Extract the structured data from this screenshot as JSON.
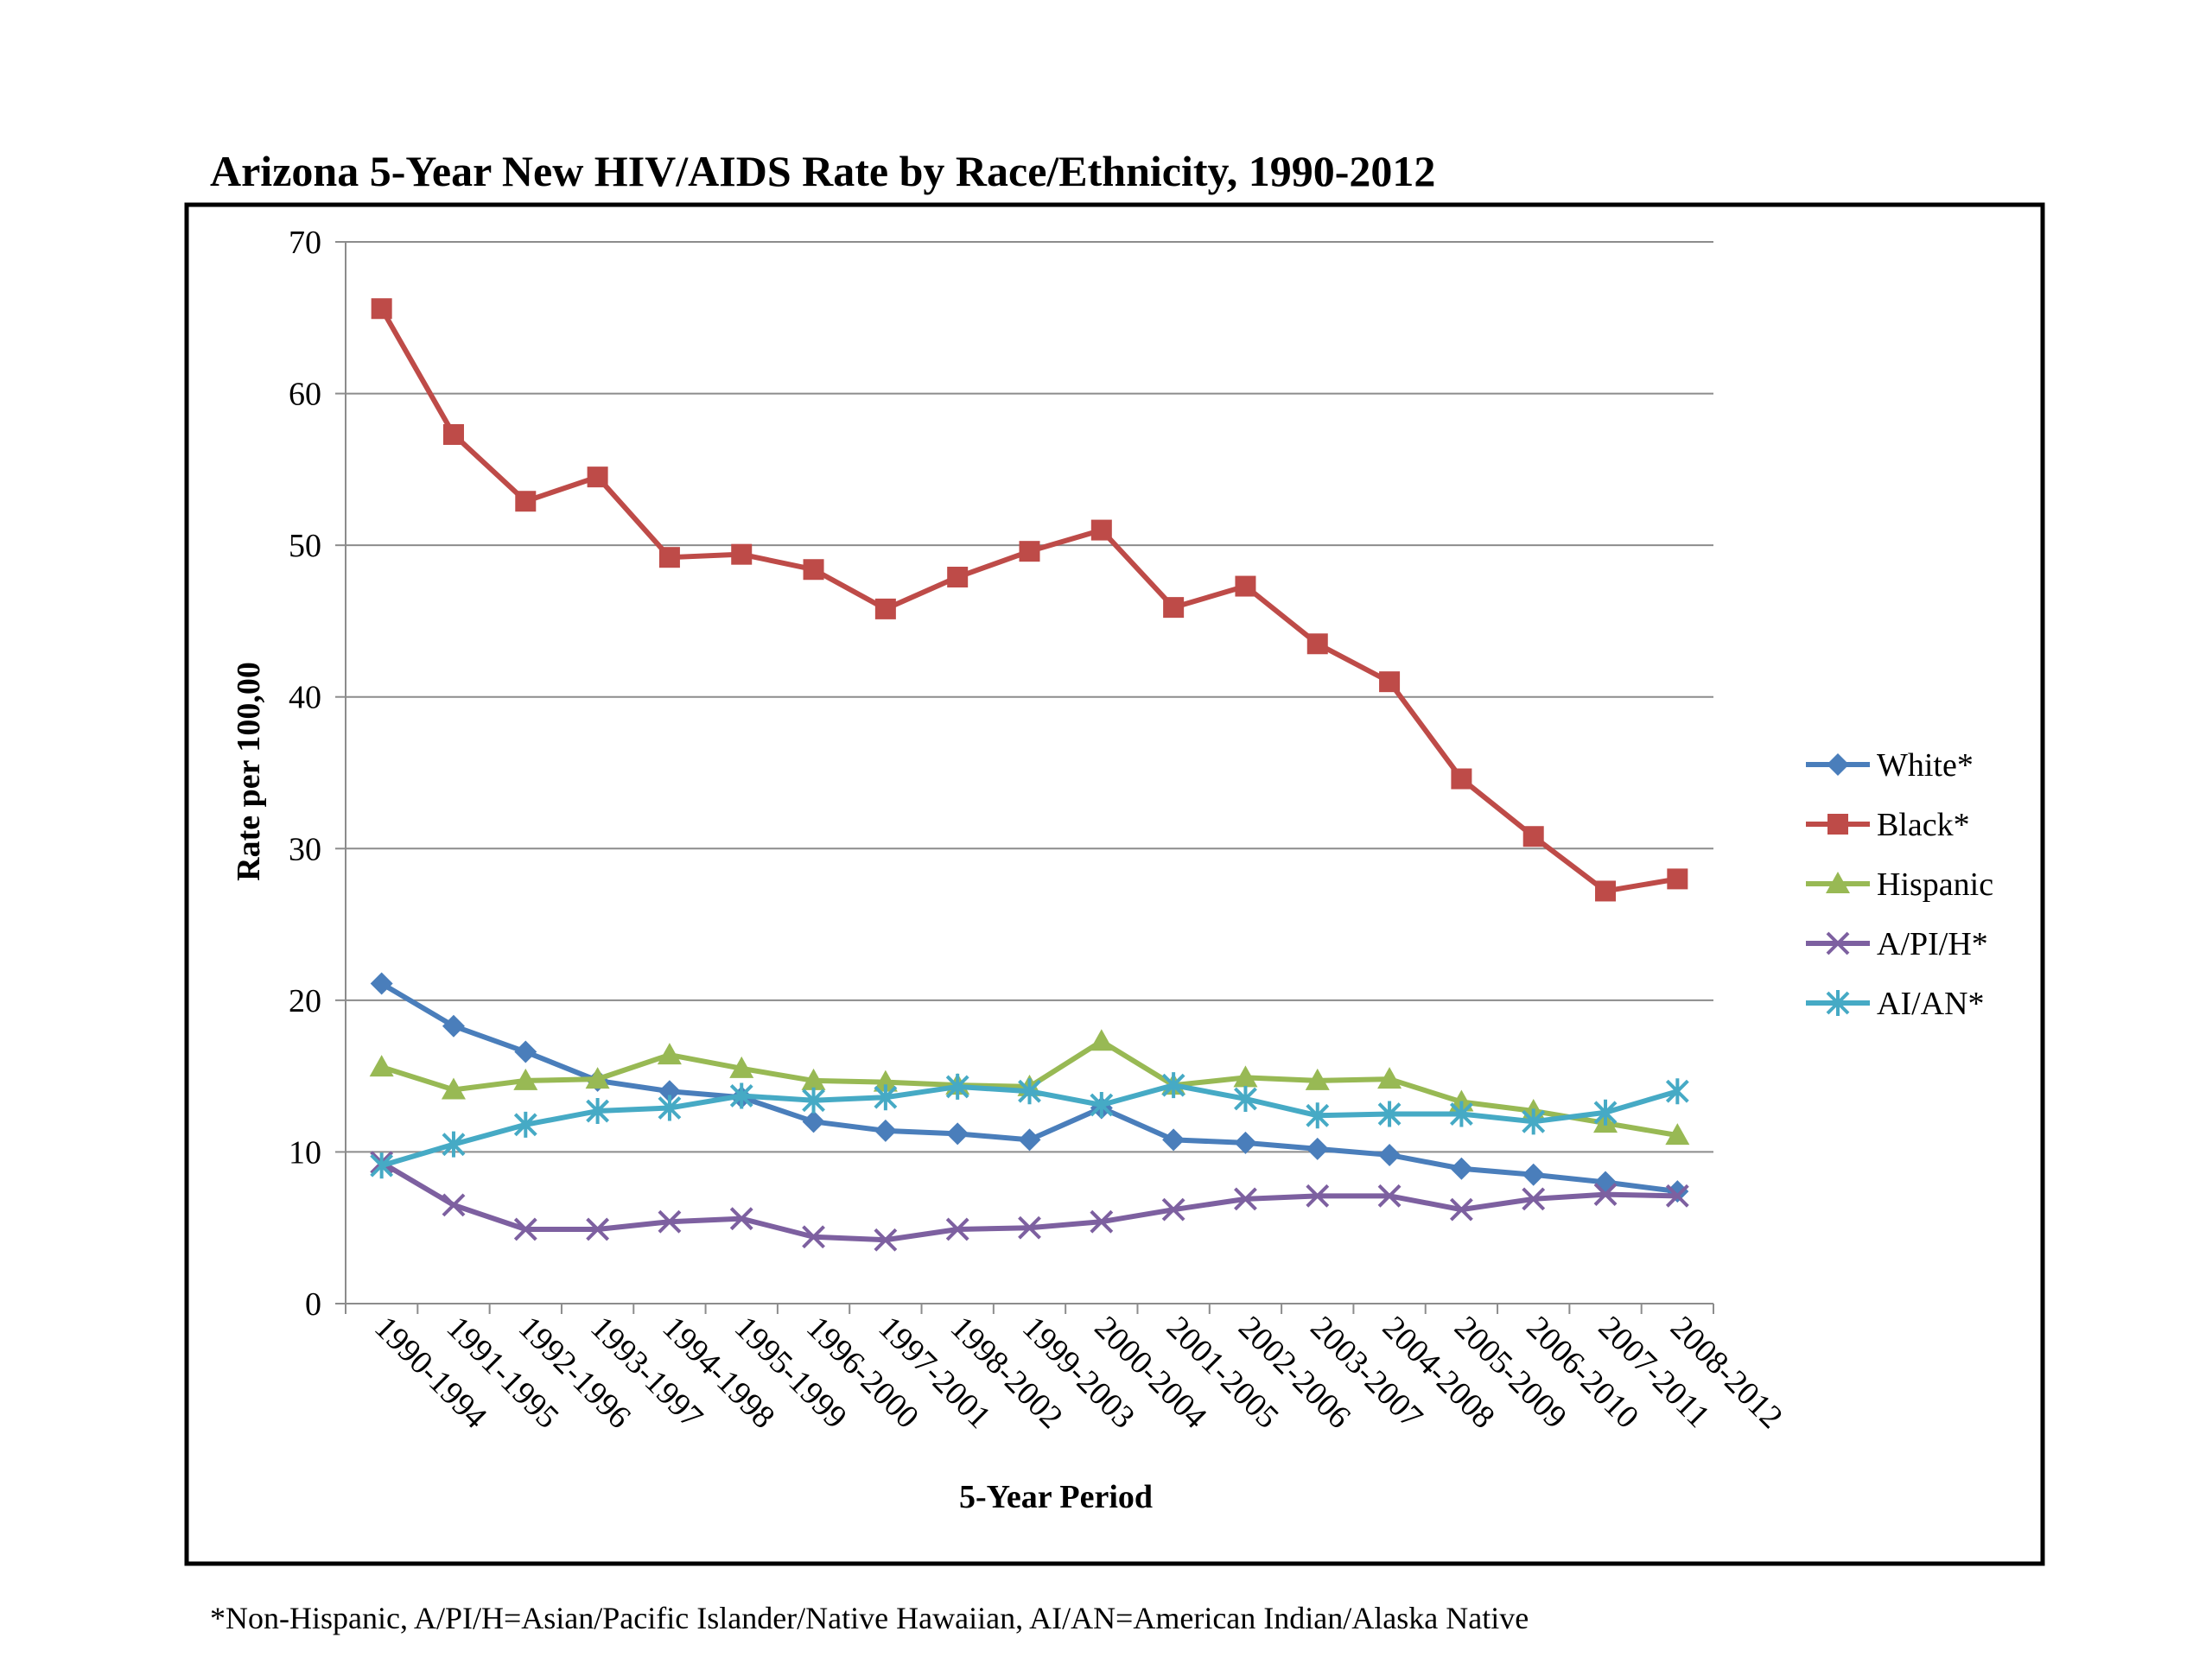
{
  "chart_data": {
    "type": "line",
    "title": "Arizona 5-Year New HIV/AIDS Rate by Race/Ethnicity, 1990-2012",
    "xlabel": "5-Year Period",
    "ylabel": "Rate per 100,00",
    "ylim": [
      0,
      70
    ],
    "yticks": [
      0,
      10,
      20,
      30,
      40,
      50,
      60,
      70
    ],
    "grid": true,
    "legend_position": "right",
    "footnote": "*Non-Hispanic, A/PI/H=Asian/Pacific Islander/Native Hawaiian, AI/AN=American Indian/Alaska Native",
    "categories": [
      "1990-1994",
      "1991-1995",
      "1992-1996",
      "1993-1997",
      "1994-1998",
      "1995-1999",
      "1996-2000",
      "1997-2001",
      "1998-2002",
      "1999-2003",
      "2000-2004",
      "2001-2005",
      "2002-2006",
      "2003-2007",
      "2004-2008",
      "2005-2009",
      "2006-2010",
      "2007-2011",
      "2008-2012"
    ],
    "series": [
      {
        "name": "White*",
        "color": "#4a7ebb",
        "marker": "diamond",
        "values": [
          21.1,
          18.3,
          16.6,
          14.7,
          14.0,
          13.6,
          12.0,
          11.4,
          11.2,
          10.8,
          12.9,
          10.8,
          10.6,
          10.2,
          9.8,
          8.9,
          8.5,
          8.0,
          7.4
        ]
      },
      {
        "name": "Black*",
        "color": "#be4b48",
        "marker": "square",
        "values": [
          65.6,
          57.3,
          52.9,
          54.5,
          49.2,
          49.4,
          48.4,
          45.8,
          47.9,
          49.6,
          51.0,
          45.9,
          47.3,
          43.5,
          41.0,
          34.6,
          30.8,
          27.2,
          28.0
        ]
      },
      {
        "name": "Hispanic",
        "color": "#98b954",
        "marker": "triangle",
        "values": [
          15.6,
          14.1,
          14.7,
          14.8,
          16.4,
          15.5,
          14.7,
          14.6,
          14.4,
          14.3,
          17.3,
          14.4,
          14.9,
          14.7,
          14.8,
          13.3,
          12.7,
          11.9,
          11.1
        ]
      },
      {
        "name": "A/PI/H*",
        "color": "#7d60a0",
        "marker": "x",
        "values": [
          9.3,
          6.5,
          4.9,
          4.9,
          5.4,
          5.6,
          4.4,
          4.2,
          4.9,
          5.0,
          5.4,
          6.2,
          6.9,
          7.1,
          7.1,
          6.2,
          6.9,
          7.2,
          7.1
        ]
      },
      {
        "name": "AI/AN*",
        "color": "#46aac5",
        "marker": "star",
        "values": [
          9.1,
          10.5,
          11.8,
          12.7,
          12.9,
          13.7,
          13.4,
          13.6,
          14.3,
          14.0,
          13.1,
          14.4,
          13.5,
          12.4,
          12.5,
          12.5,
          12.0,
          12.6,
          14.0
        ]
      }
    ]
  }
}
